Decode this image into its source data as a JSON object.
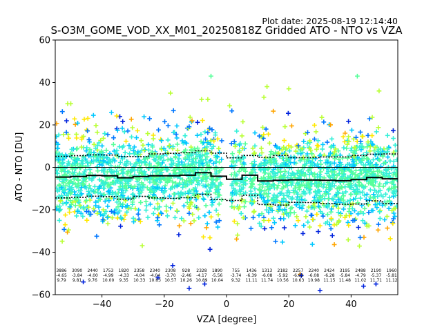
{
  "plot_date": "Plot date: 2025-08-19 12:14:40",
  "chart_data": {
    "type": "scatter",
    "title": "S-O3M_GOME_VOD_XX_M01_20250818Z Gridded ATO - NTO vs VZA",
    "xlabel": "VZA [degree]",
    "ylabel": "ATO - NTO [DU]",
    "xlim": [
      -55,
      55
    ],
    "ylim": [
      -60,
      60
    ],
    "xticks": [
      -40,
      -20,
      0,
      20,
      40
    ],
    "yticks": [
      -60,
      -40,
      -20,
      0,
      20,
      40,
      60
    ],
    "grid": false,
    "marker": "plus",
    "colors": [
      "#0022dd",
      "#0077ff",
      "#00c8ff",
      "#33f0d8",
      "#55ff99",
      "#b8ff33",
      "#ffe800",
      "#ffa500"
    ],
    "bin_centers": [
      -53,
      -48,
      -43,
      -38,
      -33,
      -28,
      -23,
      -18,
      -13,
      -8,
      -3,
      3,
      8,
      13,
      18,
      23,
      28,
      33,
      38,
      43,
      48,
      53
    ],
    "stats": {
      "counts": [
        "3886",
        "3090",
        "2440",
        "1753",
        "1820",
        "2358",
        "2340",
        "2308",
        "928",
        "2328",
        "1890",
        "755",
        "1436",
        "1313",
        "2182",
        "2257",
        "2240",
        "2424",
        "3195",
        "2488",
        "2190",
        "1960"
      ],
      "means": [
        "-4.65",
        "-3.84",
        "-4.00",
        "-4.99",
        "-4.33",
        "-4.04",
        "-4.04",
        "-3.70",
        "-2.46",
        "-4.17",
        "-5.56",
        "-3.74",
        "-6.39",
        "-6.08",
        "-5.92",
        "-6.02",
        "-6.08",
        "-6.28",
        "-5.84",
        "-4.79",
        "-5.37",
        "-5.81"
      ],
      "stds": [
        "9.79",
        "9.81",
        "9.76",
        "10.00",
        "9.35",
        "10.33",
        "10.63",
        "10.57",
        "10.26",
        "10.89",
        "10.04",
        "9.32",
        "11.11",
        "11.74",
        "10.56",
        "10.63",
        "10.98",
        "11.15",
        "11.48",
        "11.02",
        "11.71",
        "11.12"
      ]
    },
    "mean_line": {
      "x": [
        -55,
        -50,
        -45,
        -40,
        -35,
        -30,
        -25,
        -20,
        -15,
        -10,
        -5,
        0,
        5,
        10,
        15,
        20,
        25,
        30,
        35,
        40,
        45,
        50,
        55
      ],
      "y": [
        -4.6,
        -4.3,
        -3.8,
        -4.0,
        -4.9,
        -4.3,
        -4.0,
        -4.0,
        -3.7,
        -2.5,
        -4.2,
        -5.6,
        -3.7,
        -6.4,
        -6.1,
        -5.9,
        -6.0,
        -6.1,
        -6.3,
        -5.8,
        -4.8,
        -5.4,
        -5.8
      ]
    },
    "upper_line": {
      "x": [
        -55,
        -50,
        -45,
        -40,
        -35,
        -30,
        -25,
        -20,
        -15,
        -10,
        -5,
        0,
        5,
        10,
        15,
        20,
        25,
        30,
        35,
        40,
        45,
        50,
        55
      ],
      "y": [
        5.2,
        5.5,
        5.9,
        5.8,
        5.1,
        5.0,
        6.3,
        6.6,
        6.9,
        7.8,
        6.7,
        4.5,
        5.6,
        4.7,
        5.6,
        4.6,
        4.6,
        4.9,
        4.9,
        5.6,
        6.2,
        6.3,
        5.3
      ]
    },
    "lower_line": {
      "x": [
        -55,
        -50,
        -45,
        -40,
        -35,
        -30,
        -25,
        -20,
        -15,
        -10,
        -5,
        0,
        5,
        10,
        15,
        20,
        25,
        30,
        35,
        40,
        45,
        50,
        55
      ],
      "y": [
        -14.4,
        -14.1,
        -13.6,
        -13.8,
        -15.0,
        -13.7,
        -14.4,
        -14.6,
        -14.3,
        -12.7,
        -15.1,
        -15.6,
        -13.1,
        -17.5,
        -17.8,
        -16.5,
        -16.6,
        -17.1,
        -17.4,
        -17.3,
        -15.8,
        -17.1,
        -16.9
      ]
    },
    "outliers": [
      {
        "x": -5,
        "y": 43
      },
      {
        "x": 42,
        "y": 43
      },
      {
        "x": 49,
        "y": 36
      },
      {
        "x": -51,
        "y": 30
      },
      {
        "x": -50,
        "y": 30
      },
      {
        "x": 13,
        "y": 38
      },
      {
        "x": 20,
        "y": 37
      },
      {
        "x": -18,
        "y": 35
      },
      {
        "x": -8,
        "y": 32
      },
      {
        "x": -6,
        "y": 32
      },
      {
        "x": 12,
        "y": 33
      },
      {
        "x": 1,
        "y": 29
      },
      {
        "x": -12,
        "y": -57
      },
      {
        "x": -7,
        "y": -55
      },
      {
        "x": 30,
        "y": -58
      },
      {
        "x": 44,
        "y": -56
      },
      {
        "x": -22,
        "y": -52
      },
      {
        "x": 48,
        "y": -55
      },
      {
        "x": -46,
        "y": -54
      },
      {
        "x": 24,
        "y": -51
      }
    ]
  }
}
